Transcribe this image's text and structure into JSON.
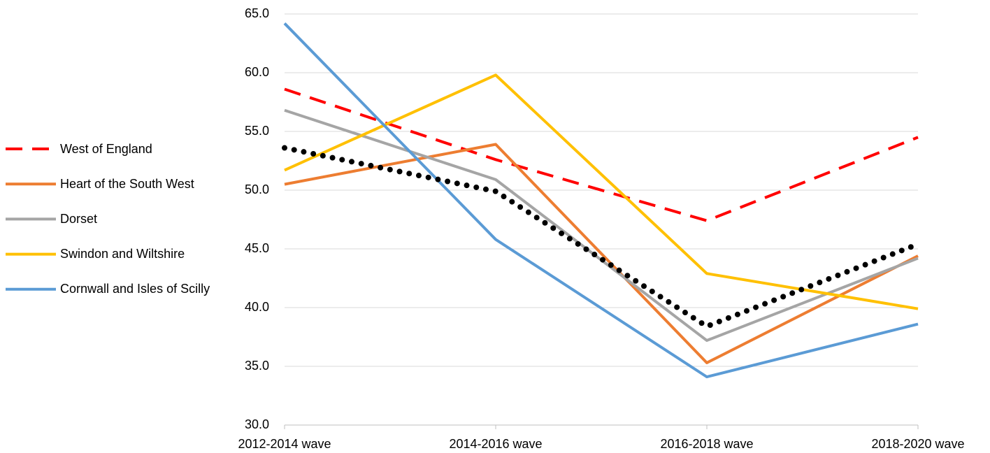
{
  "chart_data": {
    "type": "line",
    "categories": [
      "2012-2014 wave",
      "2014-2016 wave",
      "2016-2018 wave",
      "2018-2020 wave"
    ],
    "series": [
      {
        "name": "West of England",
        "color": "#ff0000",
        "style": "dashed",
        "values": [
          58.6,
          52.6,
          47.4,
          54.5
        ]
      },
      {
        "name": "Heart of the South West",
        "color": "#ed7d31",
        "style": "solid",
        "values": [
          50.5,
          53.9,
          35.3,
          44.4
        ]
      },
      {
        "name": "Dorset",
        "color": "#a5a5a5",
        "style": "solid",
        "values": [
          56.8,
          50.9,
          37.2,
          44.2
        ]
      },
      {
        "name": "Swindon and Wiltshire",
        "color": "#ffc000",
        "style": "solid",
        "values": [
          51.7,
          59.8,
          42.9,
          39.9
        ]
      },
      {
        "name": "Cornwall and Isles of Scilly",
        "color": "#5b9bd5",
        "style": "solid",
        "values": [
          64.2,
          45.8,
          34.1,
          38.6
        ]
      },
      {
        "color": "#000000",
        "style": "dotted",
        "values": [
          53.6,
          49.9,
          38.4,
          45.4
        ]
      }
    ],
    "ylim": [
      30,
      65
    ],
    "yticks": [
      {
        "value": 30,
        "label": "30.0"
      },
      {
        "value": 35,
        "label": "35.0"
      },
      {
        "value": 40,
        "label": "40.0"
      },
      {
        "value": 45,
        "label": "45.0"
      },
      {
        "value": 50,
        "label": "50.0"
      },
      {
        "value": 55,
        "label": "55.0"
      },
      {
        "value": 60,
        "label": "60.0"
      },
      {
        "value": 65,
        "label": "65.0"
      }
    ],
    "grid": true,
    "legend": "left"
  }
}
